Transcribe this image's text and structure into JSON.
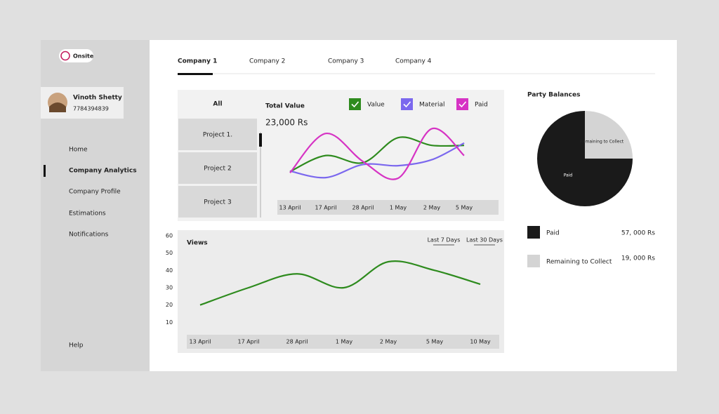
{
  "brand": "Onsite",
  "user": {
    "name": "Vinoth Shetty",
    "phone": "7784394839"
  },
  "nav": [
    "Home",
    "Company Analytics",
    "Company Profile",
    "Estimations",
    "Notifications"
  ],
  "nav_footer": "Help",
  "tabs": [
    "Company 1",
    "Company 2",
    "Company 3",
    "Company 4"
  ],
  "projects": {
    "header": "All",
    "items": [
      "Project 1.",
      "Project 2",
      "Project 3"
    ]
  },
  "chart_data": [
    {
      "type": "line",
      "title": "Total Value",
      "subtitle": "23,000 Rs",
      "categories": [
        "13 April",
        "17 April",
        "28 April",
        "1 May",
        "2 May",
        "5 May"
      ],
      "ylim": [
        0,
        100
      ],
      "series": [
        {
          "name": "Value",
          "color": "#2e8b1e",
          "values": [
            24,
            51,
            39,
            81,
            68,
            68
          ]
        },
        {
          "name": "Material",
          "color": "#7b68ee",
          "values": [
            25,
            14,
            36,
            34,
            44,
            72
          ]
        },
        {
          "name": "Paid",
          "color": "#d633c4",
          "values": [
            22,
            88,
            41,
            13,
            96,
            51
          ]
        }
      ]
    },
    {
      "type": "line",
      "title": "Views",
      "filters": [
        "Last 7 Days",
        "Last 30 Days"
      ],
      "categories": [
        "13 April",
        "17 April",
        "28 April",
        "1 May",
        "2 May",
        "5 May",
        "10 May"
      ],
      "values": [
        20,
        30,
        38,
        30,
        45,
        40,
        32
      ],
      "color": "#2e8b1e",
      "ylim": [
        0,
        60
      ],
      "yticks": [
        10,
        20,
        30,
        40,
        50,
        60
      ]
    },
    {
      "type": "pie",
      "title": "Party Balances",
      "categories": [
        "Paid",
        "Remaining to Collect"
      ],
      "values": [
        57000,
        19000
      ],
      "value_labels": [
        "57, 000 Rs",
        "19, 000 Rs"
      ],
      "colors": [
        "#1a1a1a",
        "#d4d4d4"
      ]
    }
  ]
}
